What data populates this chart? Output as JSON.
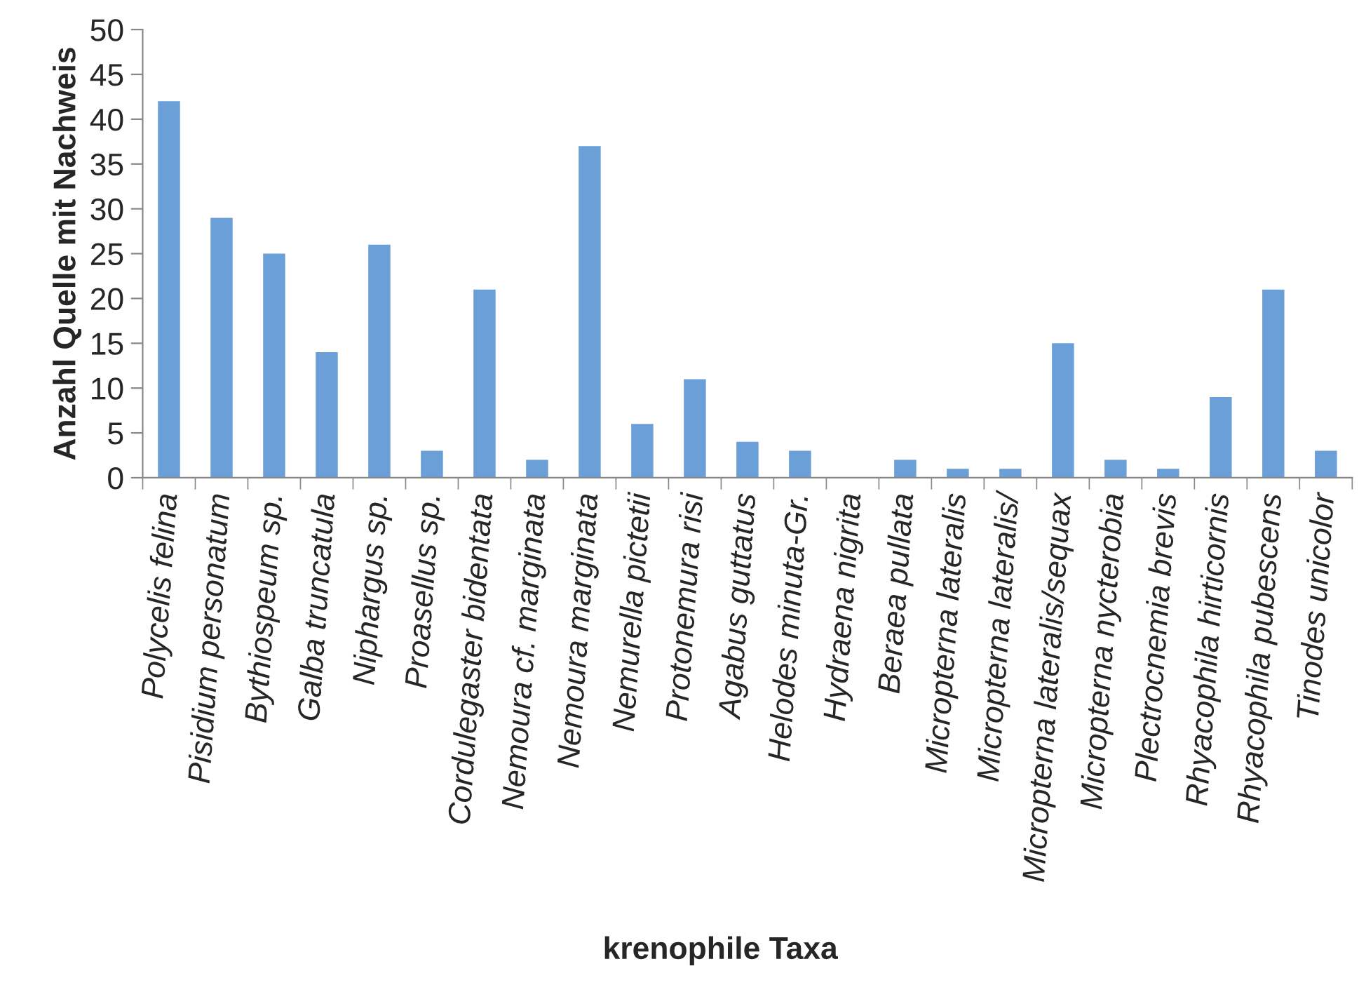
{
  "chart_data": {
    "type": "bar",
    "categories": [
      "Polycelis felina",
      "Pisidium personatum",
      "Bythiospeum sp.",
      "Galba truncatula",
      "Niphargus sp.",
      "Proasellus sp.",
      "Cordulegaster bidentata",
      "Nemoura cf. marginata",
      "Nemoura marginata",
      "Nemurella pictetii",
      "Protonemura risi",
      "Agabus guttatus",
      "Helodes minuta-Gr.",
      "Hydraena nigrita",
      "Beraea pullata",
      "Micropterna lateralis",
      "Micropterna lateralis/",
      "Micropterna lateralis/sequax",
      "Micropterna nycterobia",
      "Plectrocnemia brevis",
      "Rhyacophila hirticornis",
      "Rhyacophila pubescens",
      "Tinodes unicolor"
    ],
    "values": [
      42,
      29,
      25,
      14,
      26,
      3,
      21,
      2,
      37,
      6,
      11,
      4,
      3,
      0,
      2,
      1,
      1,
      15,
      2,
      1,
      9,
      21,
      3
    ],
    "color": "#6a9fd8",
    "xlabel": "krenophile Taxa",
    "ylabel": "Anzahl Quelle mit Nachweis",
    "ylim": [
      0,
      50
    ],
    "yticks": [
      0,
      5,
      10,
      15,
      20,
      25,
      30,
      35,
      40,
      45,
      50
    ],
    "grid": false
  }
}
